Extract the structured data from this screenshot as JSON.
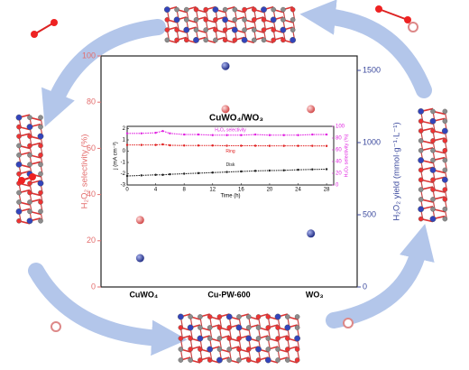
{
  "chart_data": [
    {
      "type": "dot",
      "title": "CuWO₄/WO₃",
      "categories": [
        "CuWO₄",
        "Cu-PW-600",
        "WO₃"
      ],
      "ylabel": "H₂O₂ selectivity (%)",
      "y2label": "H₂O₂ yield (mmol·g⁻¹·L⁻¹)",
      "ylim": [
        0,
        100
      ],
      "yticks": [
        0,
        20,
        40,
        60,
        80,
        100
      ],
      "y2lim": [
        0,
        1600
      ],
      "y2ticks": [
        0,
        500,
        1000,
        1500
      ],
      "series": [
        {
          "name": "H₂O₂ selectivity",
          "color": "#e36d6d",
          "values": [
            29,
            77,
            77
          ]
        },
        {
          "name": "H₂O₂ yield",
          "color": "#3c4a9e",
          "axis": "y2",
          "values": [
            200,
            1530,
            370
          ]
        }
      ]
    },
    {
      "type": "line",
      "xlabel": "Time (h)",
      "ylabel": "j (mA cm⁻²)",
      "y2label": "H₂O₂ selectivity (%)",
      "xlim": [
        0,
        29
      ],
      "xticks": [
        0,
        4,
        8,
        12,
        16,
        20,
        24,
        28
      ],
      "ylim": [
        -3,
        2.2
      ],
      "yticks": [
        -3,
        -2,
        -1,
        0,
        1,
        2
      ],
      "y2lim": [
        0,
        100
      ],
      "y2ticks": [
        0,
        20,
        40,
        60,
        80,
        100
      ],
      "x": [
        0,
        2,
        4,
        5,
        6,
        8,
        10,
        12,
        14,
        16,
        18,
        20,
        22,
        24,
        26,
        28
      ],
      "series": [
        {
          "name": "H₂O₂ selectivity",
          "color": "#e020e0",
          "axis": "y2",
          "values": [
            88,
            88,
            89,
            92,
            88,
            86,
            86,
            85,
            85,
            85,
            86,
            85,
            85,
            85,
            86,
            86
          ]
        },
        {
          "name": "Ring",
          "color": "#e02020",
          "values": [
            0.55,
            0.55,
            0.55,
            0.6,
            0.52,
            0.5,
            0.5,
            0.5,
            0.48,
            0.48,
            0.48,
            0.47,
            0.47,
            0.47,
            0.47,
            0.46
          ]
        },
        {
          "name": "Disk",
          "color": "#222222",
          "values": [
            -2.2,
            -2.15,
            -2.1,
            -2.1,
            -2.05,
            -2.0,
            -1.95,
            -1.9,
            -1.85,
            -1.8,
            -1.75,
            -1.72,
            -1.7,
            -1.65,
            -1.62,
            -1.6
          ]
        }
      ]
    }
  ]
}
